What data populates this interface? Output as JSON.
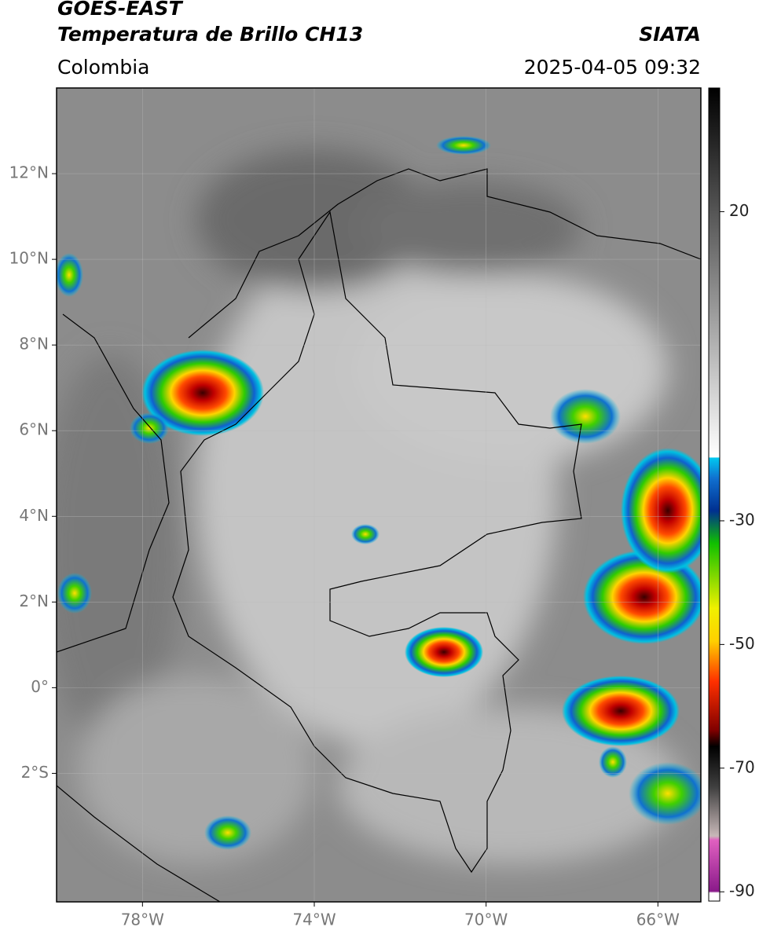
{
  "header": {
    "satellite": "GOES-EAST",
    "product": "Temperatura de Brillo CH13",
    "source": "SIATA",
    "region": "Colombia",
    "timestamp": "2025-04-05 09:32"
  },
  "map": {
    "xlim": [
      -80,
      -65
    ],
    "ylim": [
      -5,
      14
    ],
    "xticks": [
      {
        "value": -78,
        "label": "78°W"
      },
      {
        "value": -74,
        "label": "74°W"
      },
      {
        "value": -70,
        "label": "70°W"
      },
      {
        "value": -66,
        "label": "66°W"
      }
    ],
    "yticks": [
      {
        "value": 12,
        "label": "12°N"
      },
      {
        "value": 10,
        "label": "10°N"
      },
      {
        "value": 8,
        "label": "8°N"
      },
      {
        "value": 6,
        "label": "6°N"
      },
      {
        "value": 4,
        "label": "4°N"
      },
      {
        "value": 2,
        "label": "2°N"
      },
      {
        "value": 0,
        "label": "0°"
      },
      {
        "value": -2,
        "label": "2°S"
      }
    ]
  },
  "colorbar": {
    "lim": [
      -91.5,
      40
    ],
    "ticks": [
      -90,
      -70,
      -50,
      -30,
      20
    ]
  }
}
